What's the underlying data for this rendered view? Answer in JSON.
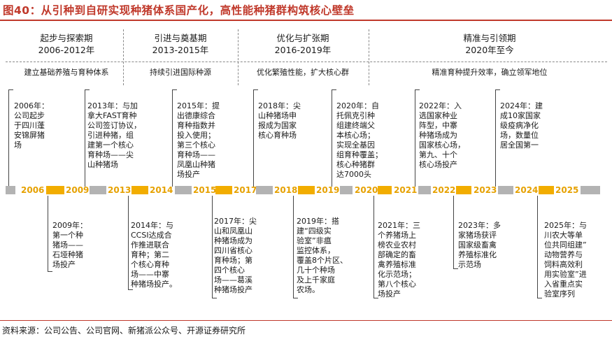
{
  "title": "图40：从引种到自研实现种猪体系国产化，高性能种猪群构筑核心壁垒",
  "colors": {
    "accent": "#c0392b",
    "timeline_gold": "#f2ad00",
    "timeline_gray": "#b3b3b3",
    "year_text": "#e6a100"
  },
  "phases": [
    {
      "name": "起步与探索期",
      "years": "2006-2012年",
      "desc": "建立基础养殖与育种体系"
    },
    {
      "name": "引进与奠基期",
      "years": "2013-2015年",
      "desc": "持续引进国际种源"
    },
    {
      "name": "优化与扩张期",
      "years": "2016-2019年",
      "desc": "优化繁殖性能，扩大核心群"
    },
    {
      "name": "精准与引领期",
      "years": "2020年至今",
      "desc": "精准育种提升效率，确立领军地位"
    }
  ],
  "years": [
    "2006",
    "2009",
    "2013",
    "2014",
    "2015",
    "2017",
    "2018",
    "2019",
    "2020",
    "2021",
    "2022",
    "2023",
    "2024",
    "2025"
  ],
  "top_events": [
    {
      "head": "2006年：",
      "body": "公司起步\n于四川蓬\n安锦屏猪\n场"
    },
    {
      "head": "2013年：与加",
      "body": "拿大FAST育种\n公司签订协议，\n引进种猪，组\n建第一个核心\n育种场——尖\n山种猪场"
    },
    {
      "head": "2015年：提",
      "body": "出德康综合\n育种指数并\n投入使用；\n第三个核心\n育种场——\n凤凰山种猪\n场投产"
    },
    {
      "head": "2018年：尖",
      "body": "山种猪场申\n报成为国家\n核心育种场"
    },
    {
      "head": "2020年：自",
      "body": "托佩克引种\n组建终端父\n本核心场；\n实现全基因\n组育种覆盖；\n核心种猪群\n达7000头"
    },
    {
      "head": "2022年：入",
      "body": "选国家种业\n阵型，中寨\n种猪场成为\n国家核心场，\n第九、十个\n核心场投产"
    },
    {
      "head": "2024年：建",
      "body": "成10家国家\n级疫病净化\n场，数量位\n居全国第一"
    }
  ],
  "bottom_events": [
    {
      "head": "2009年：",
      "body": "第一个种\n猪场——\n石垭种猪\n场投产"
    },
    {
      "head": "2014年：与",
      "body": "CCSI达成合\n作推进联合\n育种；第二\n个核心育种\n场——中寨\n种猪场投产。"
    },
    {
      "head": "2017年：尖",
      "body": "山和凤凰山\n种猪场成为\n四川省核心\n育种场；第\n四个核心\n场——葛溪\n种猪场投产"
    },
    {
      "head": "2019年：搭",
      "body": "建“四级实\n验室”非瘟\n监控体系，\n覆盖8个片区、\n几十个种场\n及上千家庭\n农场。"
    },
    {
      "head": "2021年：三",
      "body": "个养猪场上\n榜农业农村\n部确定的畜\n禽养殖标准\n化示范场；\n第八个核心\n场投产"
    },
    {
      "head": "2023年：多",
      "body": "家猪场获评\n国家级畜禽\n养殖标准化\n示范场"
    },
    {
      "head": "2025年：与",
      "body": "川农大等单\n位共同组建”\n动物营养与\n饲料高效利\n用实验室”进\n入省重点实\n验室序列"
    }
  ],
  "source": "资料来源：公司公告、公司官网、新猪派公众号、开源证券研究所"
}
